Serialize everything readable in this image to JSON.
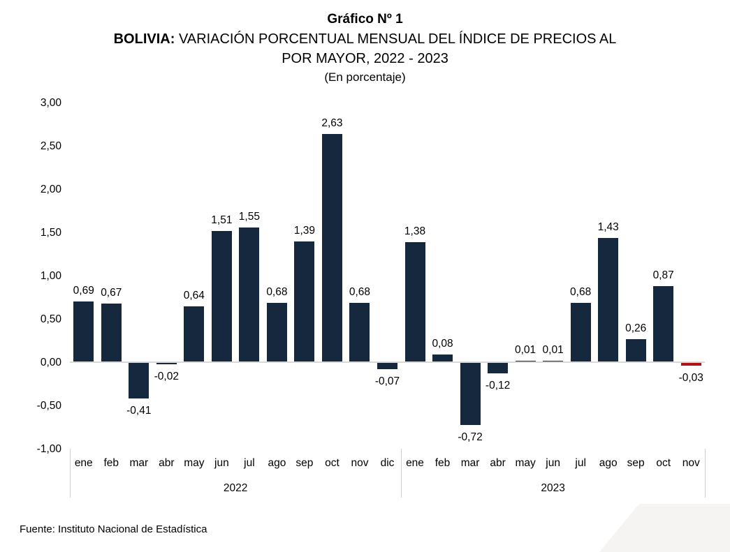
{
  "title": {
    "line1": "Gráfico Nº 1",
    "line2_bold": "BOLIVIA:",
    "line2_rest": " VARIACIÓN PORCENTUAL MENSUAL DEL ÍNDICE DE PRECIOS AL",
    "line3": "POR MAYOR, 2022 - 2023",
    "line4": "(En porcentaje)"
  },
  "source": "Fuente: Instituto Nacional de Estadística",
  "colors": {
    "bar": "#15283E",
    "highlight": "#B11218",
    "zero_line": "#D9D9D9",
    "separator": "#CFCFCF",
    "corner_decoration": "#F6F3F3",
    "text": "#000000"
  },
  "chart_data": {
    "type": "bar",
    "title": "BOLIVIA: VARIACIÓN PORCENTUAL MENSUAL DEL ÍNDICE DE PRECIOS AL POR MAYOR, 2022 - 2023 (En porcentaje)",
    "xlabel": "",
    "ylabel": "",
    "ylim": [
      -1.0,
      3.0
    ],
    "ytick_step": 0.5,
    "grid": false,
    "legend_position": "none",
    "yticks": [
      {
        "label": "3,00",
        "value": 3.0
      },
      {
        "label": "2,50",
        "value": 2.5
      },
      {
        "label": "2,00",
        "value": 2.0
      },
      {
        "label": "1,50",
        "value": 1.5
      },
      {
        "label": "1,00",
        "value": 1.0
      },
      {
        "label": "0,50",
        "value": 0.5
      },
      {
        "label": "0,00",
        "value": 0.0
      },
      {
        "label": "-0,50",
        "value": -0.5
      },
      {
        "label": "-1,00",
        "value": -1.0
      }
    ],
    "groups": [
      {
        "year": "2022",
        "categories": [
          "ene",
          "feb",
          "mar",
          "abr",
          "may",
          "jun",
          "jul",
          "ago",
          "sep",
          "oct",
          "nov",
          "dic"
        ],
        "values": [
          0.69,
          0.67,
          -0.41,
          -0.02,
          0.64,
          1.51,
          1.55,
          0.68,
          1.39,
          2.63,
          0.68,
          -0.07
        ],
        "labels": [
          "0,69",
          "0,67",
          "-0,41",
          "-0,02",
          "0,64",
          "1,51",
          "1,55",
          "0,68",
          "1,39",
          "2,63",
          "0,68",
          "-0,07"
        ]
      },
      {
        "year": "2023",
        "categories": [
          "ene",
          "feb",
          "mar",
          "abr",
          "may",
          "jun",
          "jul",
          "ago",
          "sep",
          "oct",
          "nov"
        ],
        "values": [
          1.38,
          0.08,
          -0.72,
          -0.12,
          0.01,
          0.01,
          0.68,
          1.43,
          0.26,
          0.87,
          -0.03
        ],
        "labels": [
          "1,38",
          "0,08",
          "-0,72",
          "-0,12",
          "0,01",
          "0,01",
          "0,68",
          "1,43",
          "0,26",
          "0,87",
          "-0,03"
        ]
      }
    ],
    "highlight": {
      "group": 1,
      "index": 10
    }
  }
}
